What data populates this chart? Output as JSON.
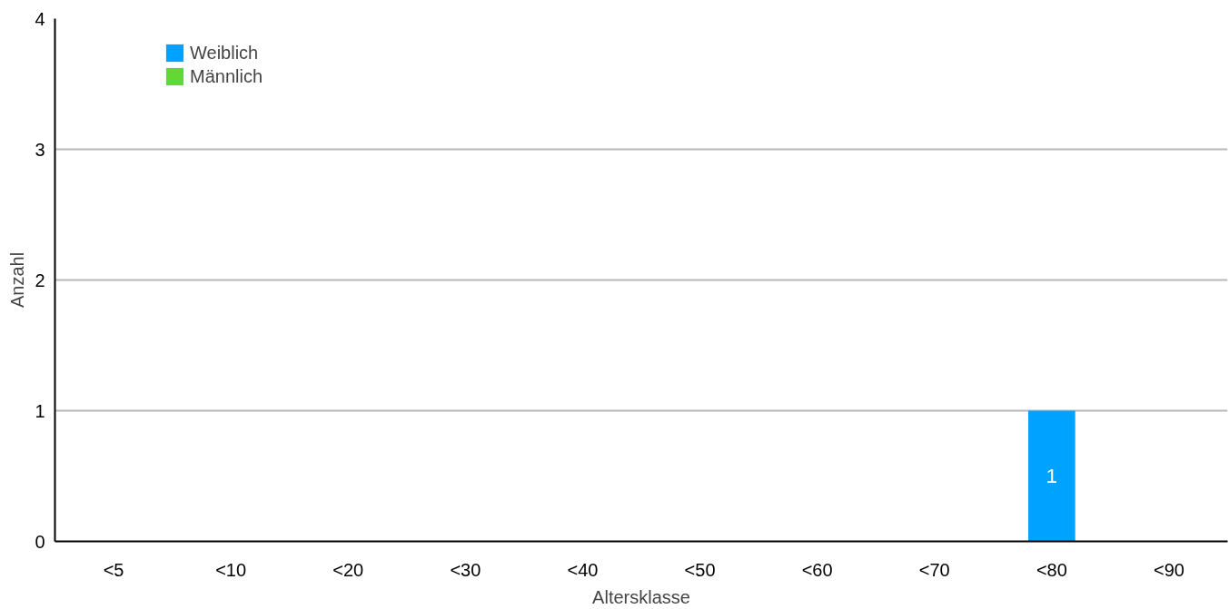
{
  "chart_data": {
    "type": "bar",
    "stacked": true,
    "xlabel": "Altersklasse",
    "ylabel": "Anzahl",
    "categories": [
      "<5",
      "<10",
      "<20",
      "<30",
      "<40",
      "<50",
      "<60",
      "<70",
      "<80",
      "<90"
    ],
    "series": [
      {
        "name": "Weiblich",
        "color": "#00a2ff",
        "values": [
          0,
          0,
          0,
          0,
          0,
          0,
          0,
          0,
          1,
          0
        ],
        "value_labels": [
          null,
          null,
          null,
          null,
          null,
          null,
          null,
          null,
          "1",
          null
        ]
      },
      {
        "name": "Männlich",
        "color": "#61d836",
        "values": [
          0,
          0,
          0,
          0,
          0,
          0,
          0,
          0,
          0,
          0
        ]
      }
    ],
    "ylim": [
      0,
      4
    ],
    "yticks": [
      0,
      1,
      2,
      3,
      4
    ],
    "grid": "y",
    "legend": "top left"
  }
}
